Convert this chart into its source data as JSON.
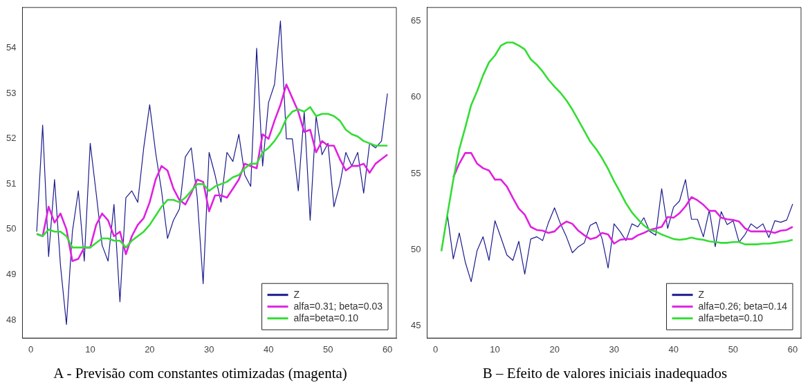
{
  "chart_data": [
    {
      "type": "line",
      "title": "A - Previsão com constantes otimizadas (magenta)",
      "x": [
        1,
        2,
        3,
        4,
        5,
        6,
        7,
        8,
        9,
        10,
        11,
        12,
        13,
        14,
        15,
        16,
        17,
        18,
        19,
        20,
        21,
        22,
        23,
        24,
        25,
        26,
        27,
        28,
        29,
        30,
        31,
        32,
        33,
        34,
        35,
        36,
        37,
        38,
        39,
        40,
        41,
        42,
        43,
        44,
        45,
        46,
        47,
        48,
        49,
        50,
        51,
        52,
        53,
        54,
        55,
        56,
        57,
        58,
        59,
        60
      ],
      "xlim": [
        -1.4,
        61.5
      ],
      "xticks": [
        0,
        10,
        20,
        30,
        40,
        50,
        60
      ],
      "ylim": [
        47.6,
        54.9
      ],
      "yticks": [
        48,
        49,
        50,
        51,
        52,
        53,
        54
      ],
      "legend": "bottom right",
      "series": [
        {
          "name": "Z",
          "color": "#1a1a8c",
          "values": [
            49.95,
            52.3,
            49.4,
            51.1,
            49.2,
            47.9,
            49.95,
            50.85,
            49.3,
            51.9,
            50.8,
            49.65,
            49.3,
            50.55,
            48.4,
            50.7,
            50.85,
            50.6,
            51.8,
            52.75,
            51.7,
            50.85,
            49.8,
            50.2,
            50.45,
            51.6,
            51.8,
            50.7,
            48.8,
            51.7,
            51.2,
            50.6,
            51.7,
            51.5,
            52.1,
            51.2,
            50.95,
            54.0,
            51.4,
            52.8,
            53.2,
            54.6,
            52.0,
            52.0,
            50.85,
            52.6,
            50.2,
            52.5,
            51.65,
            51.9,
            50.5,
            51.0,
            51.7,
            51.4,
            51.7,
            50.8,
            51.9,
            51.8,
            51.95,
            53.0
          ]
        },
        {
          "name": "alfa=0.31; beta=0.03",
          "color": "#e020e0",
          "values": [
            49.9,
            49.85,
            50.5,
            50.15,
            50.35,
            50.0,
            49.3,
            49.35,
            49.6,
            49.6,
            50.1,
            50.35,
            50.2,
            49.85,
            49.95,
            49.45,
            49.85,
            50.1,
            50.25,
            50.6,
            51.1,
            51.4,
            51.3,
            50.9,
            50.65,
            50.55,
            50.8,
            51.1,
            51.05,
            50.4,
            50.75,
            50.75,
            50.7,
            50.9,
            51.1,
            51.45,
            51.4,
            51.35,
            52.1,
            52.0,
            52.4,
            52.75,
            53.2,
            52.9,
            52.6,
            52.15,
            52.2,
            51.7,
            51.95,
            51.85,
            51.85,
            51.55,
            51.3,
            51.4,
            51.4,
            51.45,
            51.25,
            51.45,
            51.55,
            51.65
          ]
        },
        {
          "name": "alfa=beta=0.10",
          "color": "#33dd33",
          "values": [
            49.9,
            49.85,
            50.0,
            49.95,
            49.95,
            49.85,
            49.6,
            49.6,
            49.6,
            49.6,
            49.7,
            49.8,
            49.8,
            49.75,
            49.75,
            49.6,
            49.75,
            49.85,
            49.95,
            50.1,
            50.3,
            50.5,
            50.65,
            50.65,
            50.6,
            50.7,
            50.85,
            51.0,
            51.0,
            50.85,
            50.95,
            51.0,
            51.05,
            51.15,
            51.2,
            51.35,
            51.45,
            51.45,
            51.7,
            51.8,
            51.95,
            52.15,
            52.45,
            52.6,
            52.65,
            52.6,
            52.7,
            52.5,
            52.55,
            52.55,
            52.5,
            52.4,
            52.2,
            52.1,
            52.05,
            51.95,
            51.9,
            51.85,
            51.85,
            51.85
          ]
        }
      ]
    },
    {
      "type": "line",
      "title": "B – Efeito de valores iniciais inadequados",
      "x": [
        1,
        2,
        3,
        4,
        5,
        6,
        7,
        8,
        9,
        10,
        11,
        12,
        13,
        14,
        15,
        16,
        17,
        18,
        19,
        20,
        21,
        22,
        23,
        24,
        25,
        26,
        27,
        28,
        29,
        30,
        31,
        32,
        33,
        34,
        35,
        36,
        37,
        38,
        39,
        40,
        41,
        42,
        43,
        44,
        45,
        46,
        47,
        48,
        49,
        50,
        51,
        52,
        53,
        54,
        55,
        56,
        57,
        58,
        59,
        60
      ],
      "xlim": [
        -1.4,
        61.4
      ],
      "xticks": [
        0,
        10,
        20,
        30,
        40,
        50,
        60
      ],
      "ylim": [
        44.2,
        65.9
      ],
      "yticks": [
        45,
        50,
        55,
        60,
        65
      ],
      "legend": "bottom right",
      "series": [
        {
          "name": "Z",
          "color": "#1a1a8c",
          "values": [
            49.95,
            52.3,
            49.4,
            51.1,
            49.2,
            47.9,
            49.95,
            50.85,
            49.3,
            51.9,
            50.8,
            49.65,
            49.3,
            50.55,
            48.4,
            50.7,
            50.85,
            50.6,
            51.8,
            52.75,
            51.7,
            50.85,
            49.8,
            50.2,
            50.45,
            51.6,
            51.8,
            50.7,
            48.8,
            51.7,
            51.2,
            50.6,
            51.7,
            51.5,
            52.1,
            51.2,
            50.95,
            54.0,
            51.4,
            52.8,
            53.2,
            54.6,
            52.0,
            52.0,
            50.85,
            52.6,
            50.2,
            52.5,
            51.65,
            51.9,
            50.5,
            51.0,
            51.7,
            51.4,
            51.7,
            50.8,
            51.9,
            51.8,
            51.95,
            53.0
          ]
        },
        {
          "name": "alfa=0.26; beta=0.14",
          "color": "#e020e0",
          "values": [
            null,
            null,
            54.75,
            55.65,
            56.35,
            56.35,
            55.65,
            55.35,
            55.2,
            54.6,
            54.6,
            54.15,
            53.4,
            52.7,
            52.3,
            51.5,
            51.3,
            51.25,
            51.1,
            51.2,
            51.6,
            51.85,
            51.7,
            51.25,
            50.95,
            50.7,
            50.8,
            51.1,
            51.0,
            50.4,
            50.65,
            50.7,
            50.7,
            50.95,
            51.1,
            51.3,
            51.4,
            51.5,
            52.15,
            52.1,
            52.4,
            52.85,
            53.45,
            53.25,
            52.95,
            52.55,
            52.55,
            52.1,
            52.0,
            51.95,
            51.85,
            51.4,
            51.2,
            51.2,
            51.2,
            51.2,
            51.1,
            51.25,
            51.3,
            51.5
          ]
        },
        {
          "name": "alfa=beta=0.10",
          "color": "#33dd33",
          "values": [
            49.9,
            52.3,
            54.6,
            56.6,
            58.0,
            59.5,
            60.4,
            61.45,
            62.3,
            62.75,
            63.4,
            63.6,
            63.6,
            63.4,
            63.15,
            62.5,
            62.15,
            61.7,
            61.15,
            60.7,
            60.3,
            59.8,
            59.2,
            58.5,
            57.8,
            57.1,
            56.6,
            56.0,
            55.3,
            54.5,
            53.8,
            53.05,
            52.45,
            52.0,
            51.6,
            51.3,
            51.2,
            51.0,
            50.85,
            50.7,
            50.65,
            50.7,
            50.8,
            50.7,
            50.65,
            50.55,
            50.5,
            50.45,
            50.45,
            50.5,
            50.5,
            50.35,
            50.35,
            50.35,
            50.4,
            50.4,
            50.45,
            50.5,
            50.55,
            50.65
          ]
        }
      ]
    }
  ]
}
